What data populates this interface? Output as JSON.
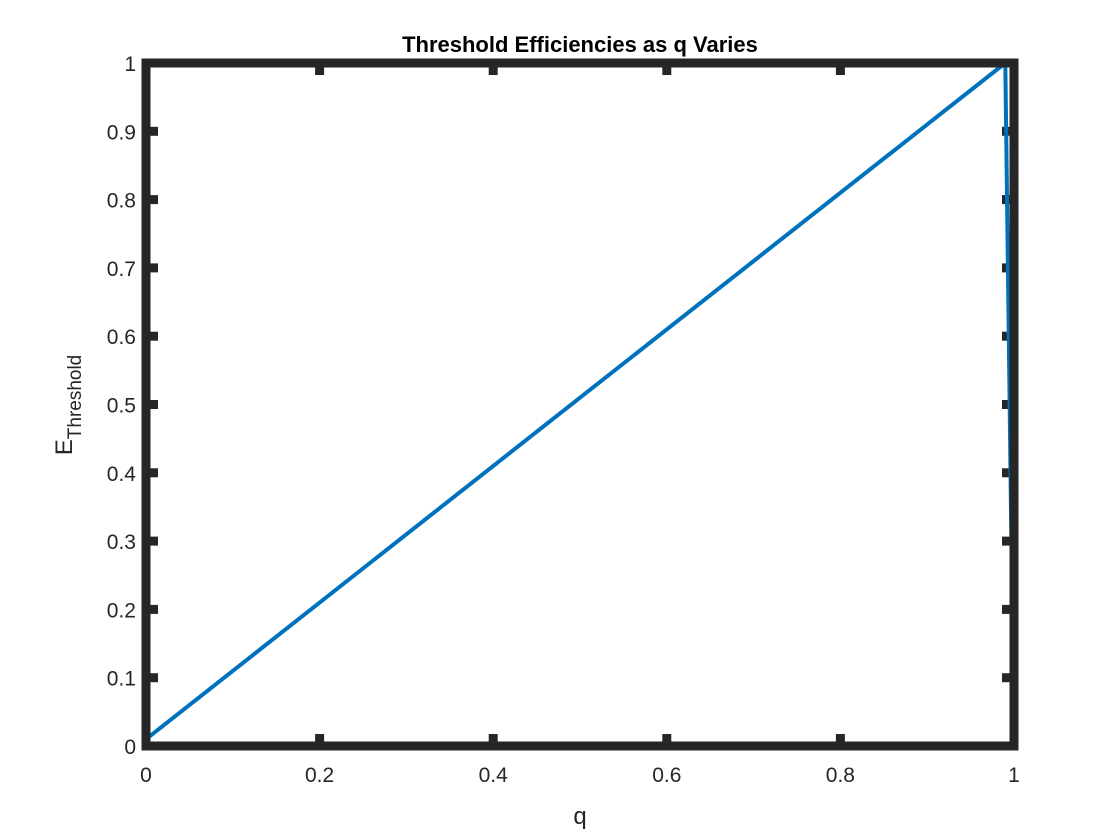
{
  "chart_data": {
    "type": "line",
    "title": "Threshold Efficiencies as q Varies",
    "xlabel": "q",
    "ylabel_base": "E",
    "ylabel_subscript": "Threshold",
    "xlim": [
      0,
      1
    ],
    "ylim": [
      0,
      1
    ],
    "x_ticks": [
      0,
      0.2,
      0.4,
      0.6,
      0.8,
      1
    ],
    "x_tick_labels": [
      "0",
      "0.2",
      "0.4",
      "0.6",
      "0.8",
      "1"
    ],
    "y_ticks": [
      0,
      0.1,
      0.2,
      0.3,
      0.4,
      0.5,
      0.6,
      0.7,
      0.8,
      0.9,
      1
    ],
    "y_tick_labels": [
      "0",
      "0.1",
      "0.2",
      "0.3",
      "0.4",
      "0.5",
      "0.6",
      "0.7",
      "0.8",
      "0.9",
      "1"
    ],
    "grid": false,
    "series": [
      {
        "color": "#0072BD",
        "x": [
          0,
          0.99,
          1
        ],
        "y": [
          0.01,
          1,
          0
        ]
      }
    ]
  },
  "colors": {
    "axes": "#262626",
    "background": "#ffffff"
  }
}
